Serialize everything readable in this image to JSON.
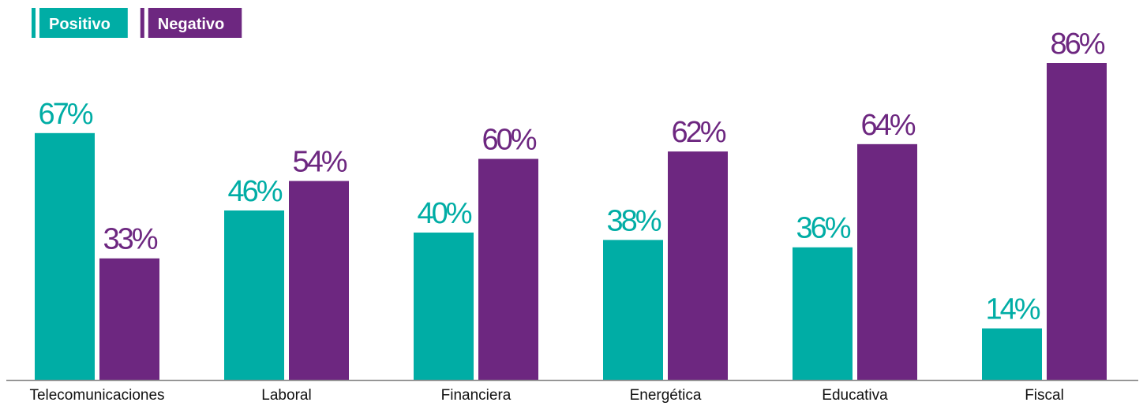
{
  "chart_data": {
    "type": "bar",
    "categories": [
      "Telecomunicaciones",
      "Laboral",
      "Financiera",
      "Energética",
      "Educativa",
      "Fiscal"
    ],
    "series": [
      {
        "name": "Positivo",
        "color": "#00ada5",
        "values": [
          67,
          46,
          40,
          38,
          36,
          14
        ],
        "value_labels": [
          "67%",
          "46%",
          "40%",
          "38%",
          "36%",
          "14%"
        ]
      },
      {
        "name": "Negativo",
        "color": "#6d2780",
        "values": [
          33,
          54,
          60,
          62,
          64,
          86
        ],
        "value_labels": [
          "33%",
          "54%",
          "60%",
          "62%",
          "64%",
          "86%"
        ]
      }
    ]
  }
}
